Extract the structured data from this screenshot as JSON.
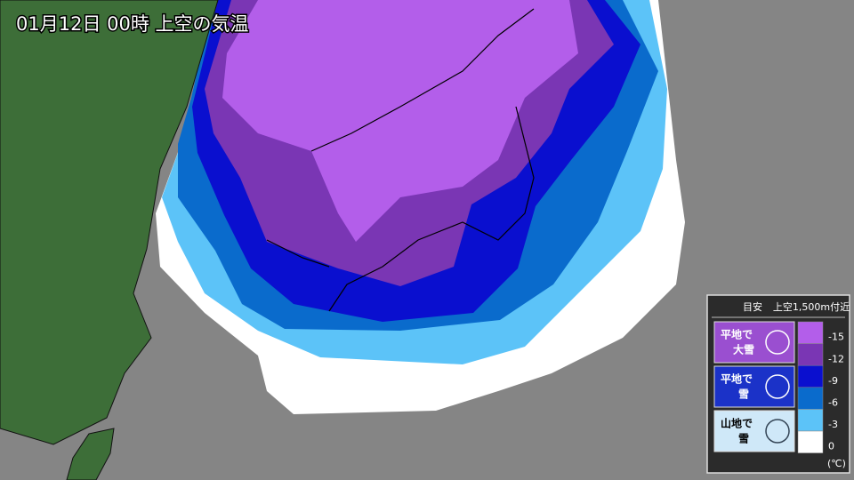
{
  "header": {
    "title": "01月12日 00時 上空の気温"
  },
  "legend": {
    "title": "目安",
    "subtitle": "上空1,500m付近",
    "guides": [
      {
        "line1": "平地で",
        "line2": "大雪",
        "color": "#9a4fd0"
      },
      {
        "line1": "平地で",
        "line2": "雪",
        "color": "#1b32c8"
      },
      {
        "line1": "山地で",
        "line2": "雪",
        "color": "#cfe8f8"
      }
    ],
    "steps": [
      {
        "label": "-15",
        "color": "#b35eea"
      },
      {
        "label": "-12",
        "color": "#7a36b4"
      },
      {
        "label": "-9",
        "color": "#0a0fcf"
      },
      {
        "label": "-6",
        "color": "#0a6bcc"
      },
      {
        "label": "-3",
        "color": "#5cc3f8"
      },
      {
        "label": "0",
        "color": "#ffffff"
      }
    ],
    "unit": "(℃)"
  }
}
